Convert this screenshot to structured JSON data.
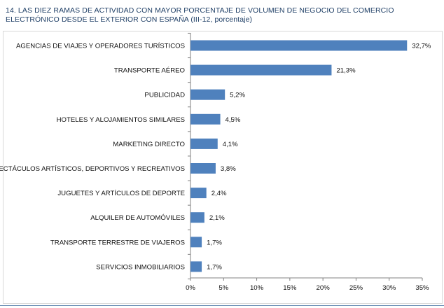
{
  "header": {
    "title": "14.  LAS DIEZ RAMAS DE ACTIVIDAD CON MAYOR PORCENTAJE DE VOLUMEN DE NEGOCIO DEL COMERCIO ELECTRÓNICO DESDE EL EXTERIOR CON ESPAÑA  (III-12, porcentaje)"
  },
  "chart_data": {
    "type": "bar",
    "orientation": "horizontal",
    "title": "LAS DIEZ RAMAS DE ACTIVIDAD CON MAYOR PORCENTAJE DE VOLUMEN DE NEGOCIO DEL COMERCIO ELECTRÓNICO DESDE EL EXTERIOR CON ESPAÑA (III-12, porcentaje)",
    "categories": [
      "AGENCIAS DE VIAJES Y OPERADORES TURÍSTICOS",
      "TRANSPORTE AÉREO",
      "PUBLICIDAD",
      "HOTELES  Y ALOJAMIENTOS SIMILARES",
      "MARKETING DIRECTO",
      "ESPECTÁCULOS ARTÍSTICOS, DEPORTIVOS Y RECREATIVOS",
      "JUGUETES Y ARTÍCULOS DE DEPORTE",
      "ALQUILER DE AUTOMÓVILES",
      "TRANSPORTE TERRESTRE DE VIAJEROS",
      "SERVICIOS INMOBILIARIOS"
    ],
    "values": [
      32.7,
      21.3,
      5.2,
      4.5,
      4.1,
      3.8,
      2.4,
      2.1,
      1.7,
      1.7
    ],
    "value_labels": [
      "32,7%",
      "21,3%",
      "5,2%",
      "4,5%",
      "4,1%",
      "3,8%",
      "2,4%",
      "2,1%",
      "1,7%",
      "1,7%"
    ],
    "xlim": [
      0,
      35
    ],
    "xticks": [
      0,
      5,
      10,
      15,
      20,
      25,
      30,
      35
    ],
    "xtick_labels": [
      "0%",
      "5%",
      "10%",
      "15%",
      "20%",
      "25%",
      "30%",
      "35%"
    ],
    "xlabel": "",
    "ylabel": "",
    "grid": false,
    "bar_color": "#4f81bd"
  }
}
